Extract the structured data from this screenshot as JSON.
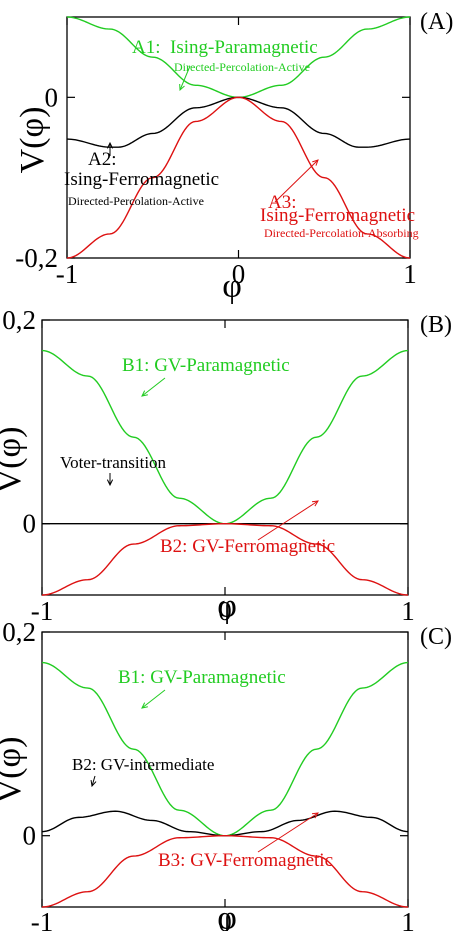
{
  "chart_data": [
    {
      "panel": "(A)",
      "type": "line",
      "xlabel": "φ",
      "ylabel": "V(φ)",
      "xlim": [
        -1,
        1
      ],
      "ylim": [
        -0.2,
        0.1
      ],
      "xticks": [
        "-1",
        "0",
        "1"
      ],
      "yticks": [
        {
          "value": 0,
          "label": "0"
        },
        {
          "value": -0.2,
          "label": "-0,2"
        }
      ],
      "series": [
        {
          "key": "A1",
          "color": "#22cc22",
          "x": [
            -1,
            -0.75,
            -0.5,
            -0.25,
            0,
            0.25,
            0.5,
            0.75,
            1
          ],
          "values": [
            0.1,
            0.085,
            0.05,
            0.015,
            0,
            0.015,
            0.05,
            0.085,
            0.1
          ]
        },
        {
          "key": "A2",
          "color": "#000000",
          "x": [
            -1,
            -0.75,
            -0.7,
            -0.5,
            -0.25,
            0,
            0.25,
            0.5,
            0.7,
            0.75,
            1
          ],
          "values": [
            -0.052,
            -0.062,
            -0.062,
            -0.045,
            -0.013,
            0,
            -0.013,
            -0.045,
            -0.062,
            -0.062,
            -0.052
          ]
        },
        {
          "key": "A3",
          "color": "#dd1111",
          "x": [
            -1,
            -0.75,
            -0.5,
            -0.25,
            0,
            0.25,
            0.5,
            0.75,
            1
          ],
          "values": [
            -0.2,
            -0.17,
            -0.1,
            -0.03,
            0,
            -0.03,
            -0.1,
            -0.17,
            -0.2
          ]
        }
      ],
      "annotations": [
        {
          "name": "A1",
          "lines": [
            {
              "text": "A1:",
              "color": "#22cc22",
              "size": 19
            },
            {
              "text": "Ising-Paramagnetic",
              "color": "#22cc22",
              "size": 19
            },
            {
              "text": "Directed-Percolation-Active",
              "color": "#22cc22",
              "size": 12
            }
          ]
        },
        {
          "name": "A2",
          "lines": [
            {
              "text": "A2:",
              "color": "#000000",
              "size": 19
            },
            {
              "text": "Ising-Ferromagnetic",
              "color": "#000000",
              "size": 19
            },
            {
              "text": "Directed-Percolation-Active",
              "color": "#000000",
              "size": 12
            }
          ]
        },
        {
          "name": "A3",
          "lines": [
            {
              "text": "A3:",
              "color": "#dd1111",
              "size": 19
            },
            {
              "text": "Ising-Ferromagnetic",
              "color": "#dd1111",
              "size": 19
            },
            {
              "text": "Directed-Percolation-Absorbing",
              "color": "#dd1111",
              "size": 12
            }
          ]
        }
      ]
    },
    {
      "panel": "(B)",
      "type": "line",
      "xlabel": "φ",
      "ylabel": "V(φ)",
      "xlim": [
        -1,
        1
      ],
      "ylim": [
        -0.07,
        0.2
      ],
      "xticks": [
        "-1",
        "0",
        "1"
      ],
      "yticks": [
        {
          "value": 0.2,
          "label": "0,2"
        },
        {
          "value": 0,
          "label": "0"
        }
      ],
      "series": [
        {
          "key": "B1",
          "color": "#22cc22",
          "x": [
            -1,
            -0.75,
            -0.5,
            -0.25,
            0,
            0.25,
            0.5,
            0.75,
            1
          ],
          "values": [
            0.17,
            0.145,
            0.085,
            0.025,
            0,
            0.025,
            0.085,
            0.145,
            0.17
          ]
        },
        {
          "key": "voter",
          "color": "#000000",
          "x": [
            -1,
            1
          ],
          "values": [
            0,
            0
          ]
        },
        {
          "key": "B2",
          "color": "#dd1111",
          "x": [
            -1,
            -0.75,
            -0.5,
            -0.25,
            0,
            0.25,
            0.5,
            0.75,
            1
          ],
          "values": [
            -0.07,
            -0.055,
            -0.02,
            -0.002,
            0,
            -0.002,
            -0.02,
            -0.055,
            -0.07
          ]
        }
      ],
      "annotations": [
        {
          "name": "B1",
          "lines": [
            {
              "text": "B1: GV-Paramagnetic",
              "color": "#22cc22",
              "size": 19
            }
          ]
        },
        {
          "name": "voter",
          "lines": [
            {
              "text": "Voter-transition",
              "color": "#000000",
              "size": 17
            }
          ]
        },
        {
          "name": "B2",
          "lines": [
            {
              "text": "B2: GV-Ferromagnetic",
              "color": "#dd1111",
              "size": 19
            }
          ]
        }
      ]
    },
    {
      "panel": "(C)",
      "type": "line",
      "xlabel": "φ",
      "ylabel": "V(φ)",
      "xlim": [
        -1,
        1
      ],
      "ylim": [
        -0.07,
        0.2
      ],
      "xticks": [
        "-1",
        "0",
        "1"
      ],
      "yticks": [
        {
          "value": 0.2,
          "label": "0,2"
        },
        {
          "value": 0,
          "label": "0"
        }
      ],
      "series": [
        {
          "key": "B1",
          "color": "#22cc22",
          "x": [
            -1,
            -0.75,
            -0.5,
            -0.25,
            0,
            0.25,
            0.5,
            0.75,
            1
          ],
          "values": [
            0.17,
            0.145,
            0.085,
            0.025,
            0,
            0.025,
            0.085,
            0.145,
            0.17
          ]
        },
        {
          "key": "B2",
          "color": "#000000",
          "x": [
            -1,
            -0.8,
            -0.6,
            -0.4,
            -0.2,
            0,
            0.2,
            0.4,
            0.6,
            0.8,
            1
          ],
          "values": [
            0.004,
            0.018,
            0.024,
            0.015,
            0.004,
            0,
            0.004,
            0.015,
            0.024,
            0.018,
            0.004
          ]
        },
        {
          "key": "B3",
          "color": "#dd1111",
          "x": [
            -1,
            -0.75,
            -0.5,
            -0.25,
            0,
            0.25,
            0.5,
            0.75,
            1
          ],
          "values": [
            -0.07,
            -0.055,
            -0.02,
            -0.002,
            0,
            -0.002,
            -0.02,
            -0.055,
            -0.07
          ]
        }
      ],
      "annotations": [
        {
          "name": "B1",
          "lines": [
            {
              "text": "B1:  GV-Paramagnetic",
              "color": "#22cc22",
              "size": 19
            }
          ]
        },
        {
          "name": "B2",
          "lines": [
            {
              "text": "B2: GV-intermediate",
              "color": "#000000",
              "size": 17
            }
          ]
        },
        {
          "name": "B3",
          "lines": [
            {
              "text": "B3: GV-Ferromagnetic",
              "color": "#dd1111",
              "size": 19
            }
          ]
        }
      ]
    }
  ]
}
